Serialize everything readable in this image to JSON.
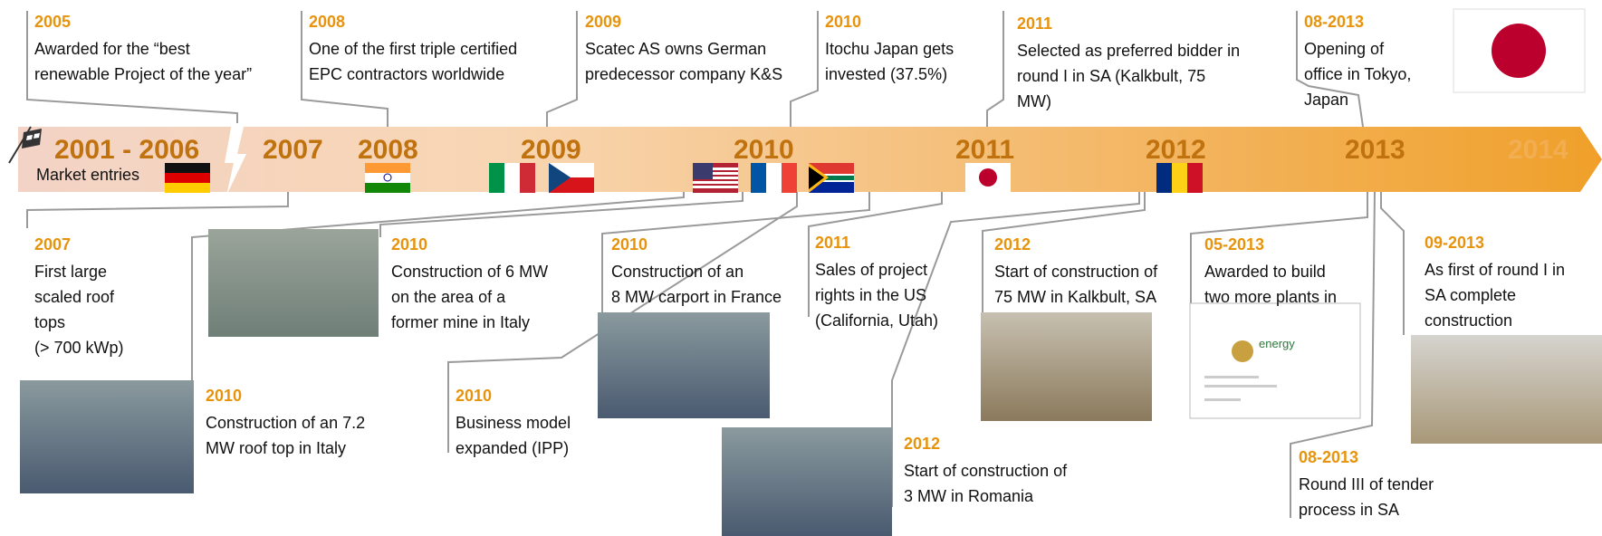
{
  "bar": {
    "years": [
      "2001 - 2006",
      "2007",
      "2008",
      "2009",
      "2010",
      "2011",
      "2012",
      "2013",
      "2014"
    ],
    "market_entries": "Market entries"
  },
  "top_events": [
    {
      "date": "2005",
      "lines": [
        "Awarded for the “best",
        "renewable Project of the year”"
      ]
    },
    {
      "date": "2008",
      "lines": [
        "One of the first triple certified",
        "EPC contractors worldwide"
      ]
    },
    {
      "date": "2009",
      "lines": [
        "Scatec AS owns German",
        "predecessor company K&S"
      ]
    },
    {
      "date": "2010",
      "lines": [
        "Itochu Japan gets",
        "invested (37.5%)"
      ]
    },
    {
      "date": "2011",
      "lines": [
        "Selected as preferred bidder in",
        "round I in SA (Kalkbult, 75",
        "MW)"
      ]
    },
    {
      "date": "08-2013",
      "lines": [
        "Opening of",
        "office in Tokyo,",
        "Japan"
      ]
    }
  ],
  "bottom_events": [
    {
      "date": "2007",
      "lines": [
        "First large",
        "scaled roof",
        "tops",
        "(> 700 kWp)"
      ]
    },
    {
      "date": "2010",
      "lines": [
        "Construction of an 7.2",
        "MW roof top in Italy"
      ]
    },
    {
      "date": "2010",
      "lines": [
        "Construction of 6 MW",
        "on the area of a",
        "former mine in Italy"
      ]
    },
    {
      "date": "2010",
      "lines": [
        "Business model",
        "expanded (IPP)"
      ]
    },
    {
      "date": "2010",
      "lines": [
        "Construction of an",
        "8 MW carport in France"
      ]
    },
    {
      "date": "2011",
      "lines": [
        "Sales of project",
        "rights in the US",
        "(California, Utah)"
      ]
    },
    {
      "date": "2012",
      "lines": [
        "Start of construction of",
        "3 MW in Romania"
      ]
    },
    {
      "date": "2012",
      "lines": [
        "Start of construction of",
        "75 MW in Kalkbult, SA"
      ]
    },
    {
      "date": "05-2013",
      "lines": [
        "Awarded to build",
        "two more plants in"
      ]
    },
    {
      "date": "09-2013",
      "lines": [
        "As first of round I in",
        "SA complete",
        "construction"
      ]
    },
    {
      "date": "08-2013",
      "lines": [
        "Round III of tender",
        "process in SA"
      ]
    }
  ],
  "document": {
    "title": "energy"
  }
}
